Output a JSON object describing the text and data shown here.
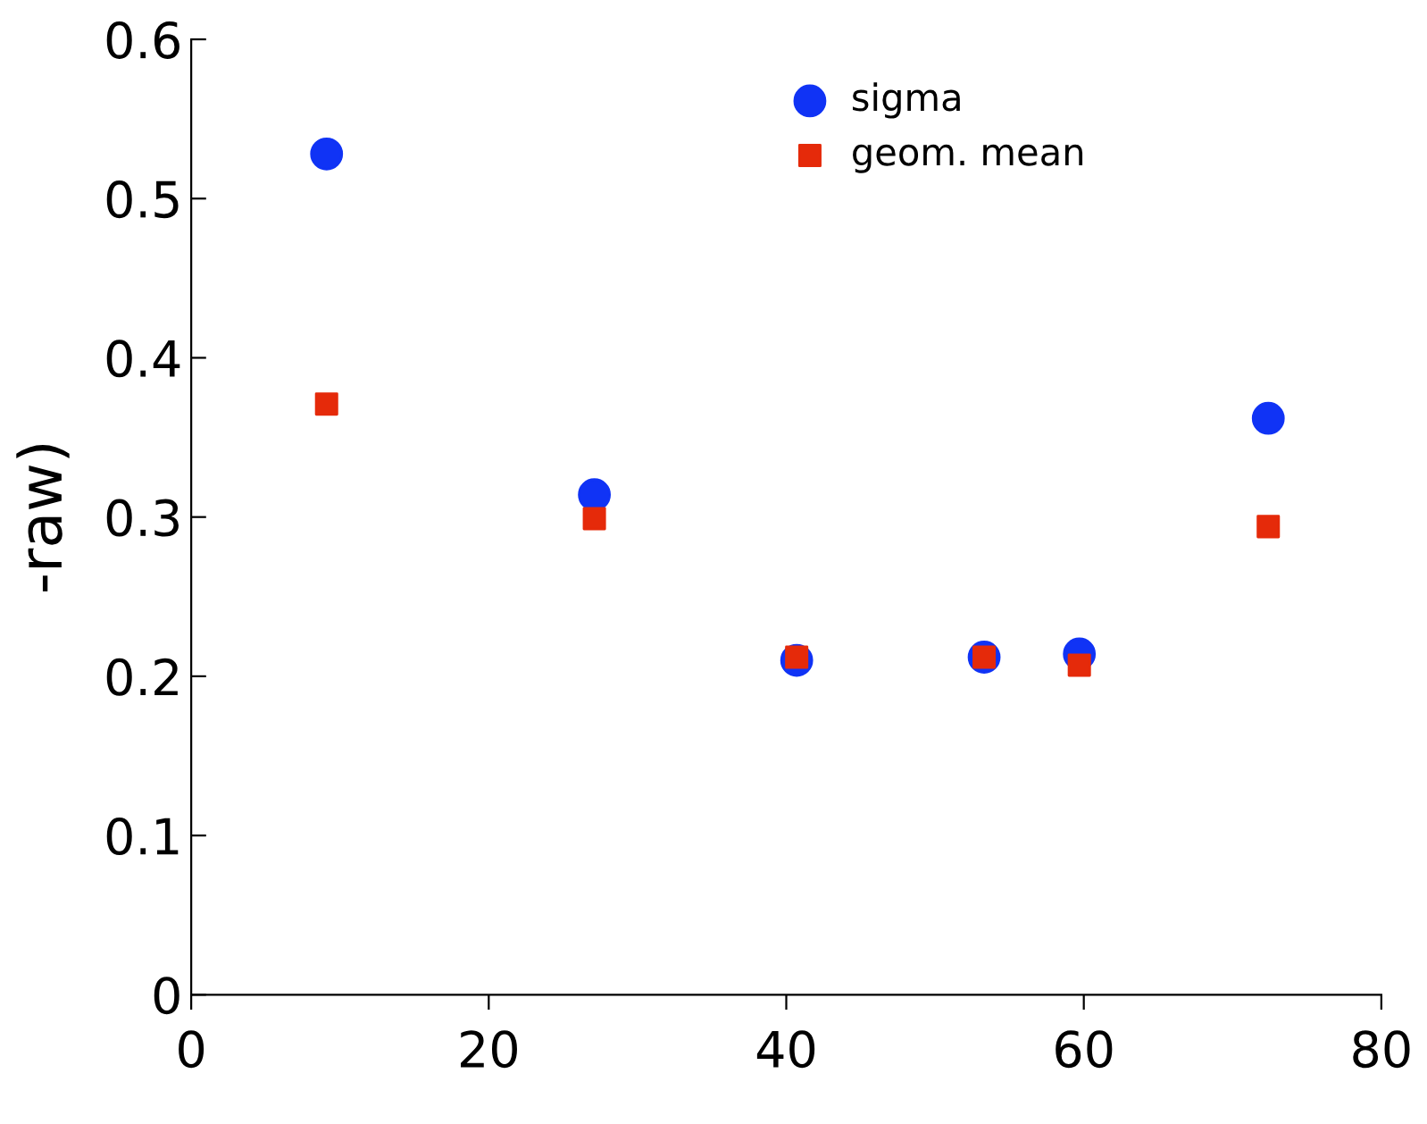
{
  "chart_data": {
    "type": "scatter",
    "ylabel": "-raw)",
    "x": [
      9.1,
      27.1,
      40.7,
      53.3,
      59.7,
      72.4
    ],
    "series": [
      {
        "name": "sigma",
        "color": "#1033f5",
        "marker": "circle",
        "values": [
          0.528,
          0.314,
          0.21,
          0.212,
          0.214,
          0.362
        ]
      },
      {
        "name": "geom. mean",
        "color": "#e52a0a",
        "marker": "square",
        "values": [
          0.371,
          0.299,
          0.212,
          0.212,
          0.207,
          0.294
        ]
      }
    ],
    "xlim": [
      0,
      80
    ],
    "xticks": [
      0,
      20,
      40,
      60,
      80
    ],
    "ylim": [
      0,
      0.6
    ],
    "yticks": [
      0,
      0.1,
      0.2,
      0.3,
      0.4,
      0.5,
      0.6
    ],
    "grid": false,
    "legend": "top"
  }
}
